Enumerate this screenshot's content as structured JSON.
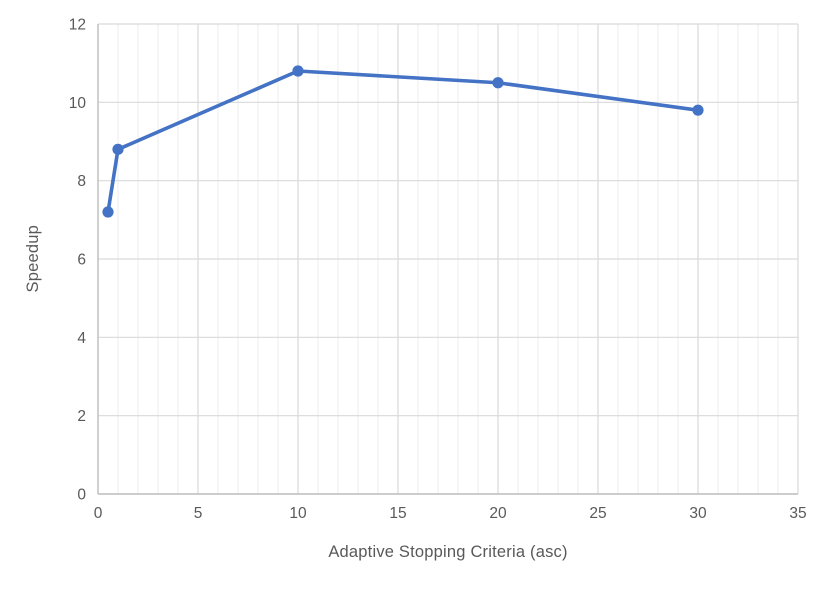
{
  "chart_data": {
    "type": "line",
    "title": "",
    "xlabel": "Adaptive Stopping Criteria (asc)",
    "ylabel": "Speedup",
    "series": [
      {
        "name": "Speedup",
        "x": [
          0.5,
          1,
          10,
          20,
          30
        ],
        "y": [
          7.2,
          8.8,
          10.8,
          10.5,
          9.8
        ]
      }
    ],
    "xlim": [
      0,
      35
    ],
    "ylim": [
      0,
      12
    ],
    "x_major_step": 5,
    "x_minor_step": 1,
    "y_major_step": 2,
    "x_tick_labels": [
      "0",
      "5",
      "10",
      "15",
      "20",
      "25",
      "30",
      "35"
    ],
    "y_tick_labels": [
      "0",
      "2",
      "4",
      "6",
      "8",
      "10",
      "12"
    ],
    "grid": true,
    "legend_position": "none",
    "colors": {
      "line": "#4472C4",
      "marker": "#4472C4",
      "major_grid": "#D9D9D9",
      "minor_grid": "#EDEDED",
      "axis_line": "#BFBFBF",
      "tick_text": "#595959"
    }
  }
}
